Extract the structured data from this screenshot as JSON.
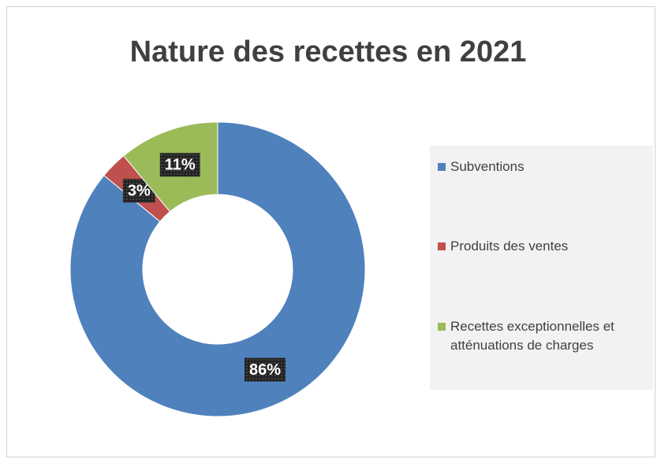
{
  "chart_data": {
    "type": "donut",
    "title": "Nature des recettes en 2021",
    "categories": [
      "Subventions",
      "Produits des ventes",
      "Recettes exceptionnelles et atténuations de charges"
    ],
    "values": [
      86,
      3,
      11
    ],
    "value_labels": [
      "86%",
      "3%",
      "11%"
    ],
    "colors": [
      "#4f81bd",
      "#c0504d",
      "#9bbb59"
    ],
    "legend": "right"
  }
}
